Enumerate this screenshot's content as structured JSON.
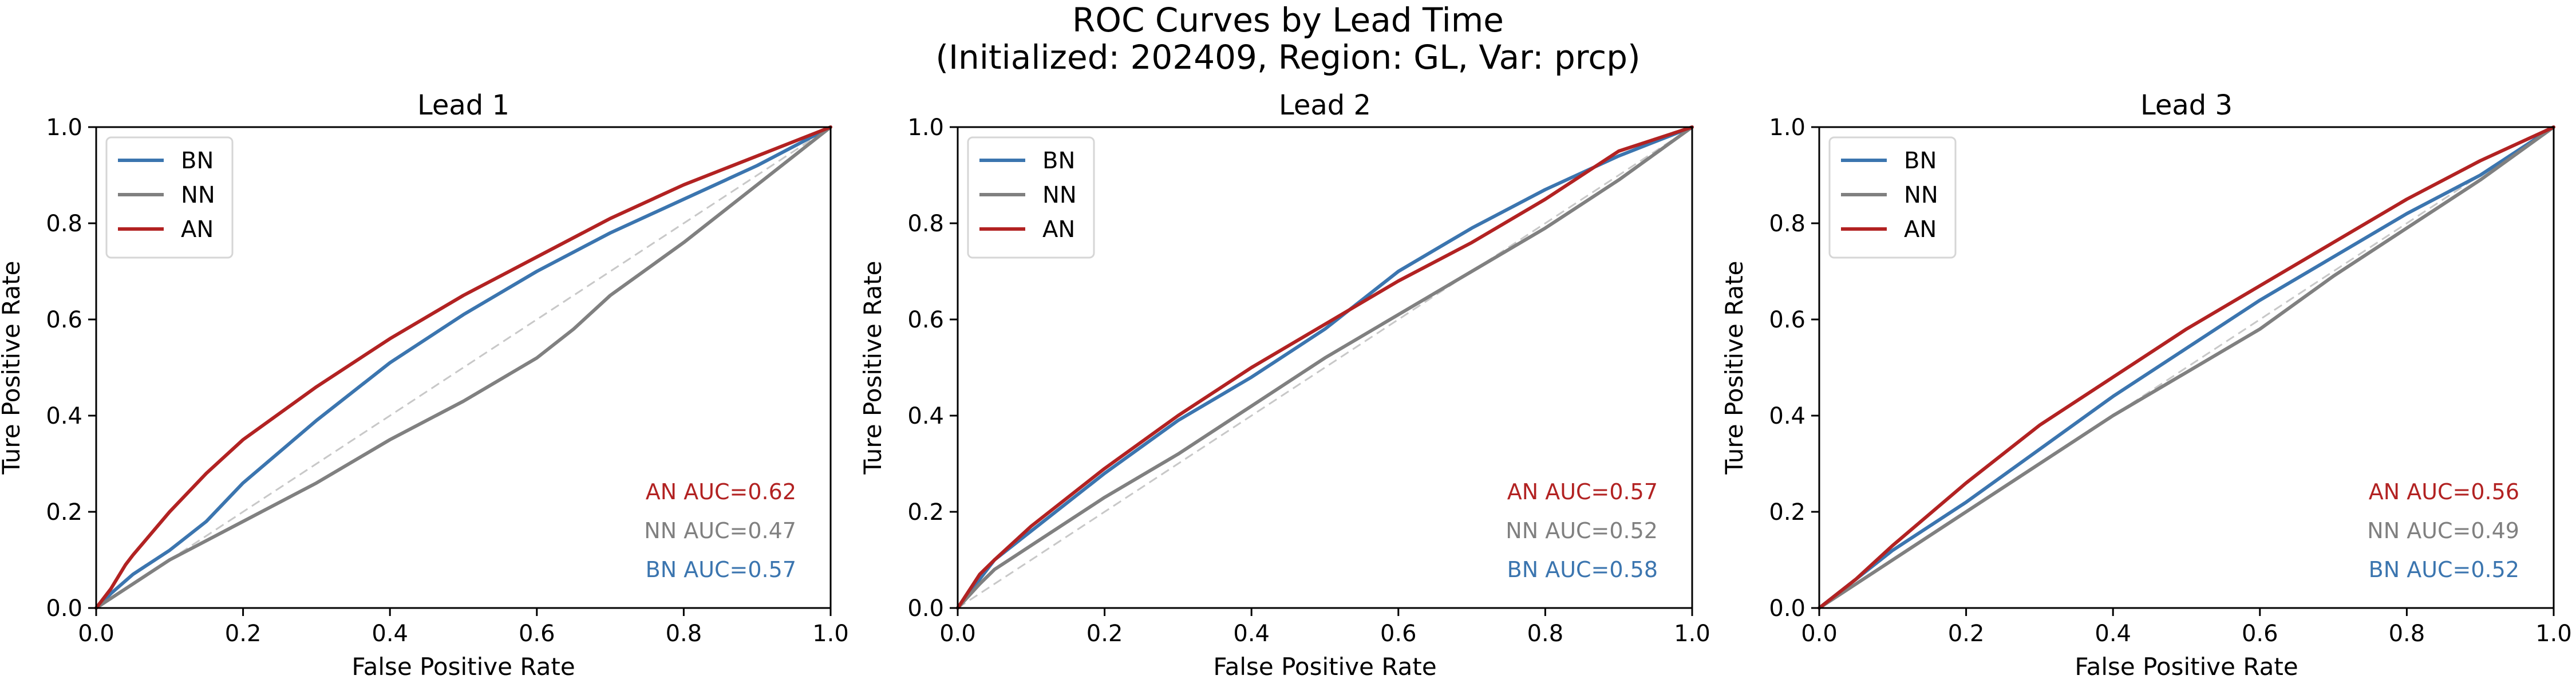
{
  "figure": {
    "title_line1": "ROC Curves by Lead Time",
    "title_line2": "(Initialized: 202409, Region: GL, Var: prcp)"
  },
  "colors": {
    "BN": "#3b75af",
    "NN": "#808080",
    "AN": "#b22222",
    "diagonal": "#c8c8c8"
  },
  "chart_data": [
    {
      "type": "line",
      "title": "Lead 1",
      "xlabel": "False Positive Rate",
      "ylabel": "Ture Positive Rate",
      "xlim": [
        0,
        1
      ],
      "ylim": [
        0,
        1
      ],
      "xticks": [
        "0.0",
        "0.2",
        "0.4",
        "0.6",
        "0.8",
        "1.0"
      ],
      "yticks": [
        "0.0",
        "0.2",
        "0.4",
        "0.6",
        "0.8",
        "1.0"
      ],
      "legend_position": "top-left",
      "series": [
        {
          "name": "BN",
          "x": [
            0,
            0.02,
            0.05,
            0.1,
            0.15,
            0.2,
            0.3,
            0.4,
            0.5,
            0.6,
            0.7,
            0.8,
            0.9,
            1.0
          ],
          "y": [
            0,
            0.03,
            0.07,
            0.12,
            0.18,
            0.26,
            0.39,
            0.51,
            0.61,
            0.7,
            0.78,
            0.85,
            0.92,
            1.0
          ]
        },
        {
          "name": "NN",
          "x": [
            0,
            0.05,
            0.1,
            0.2,
            0.3,
            0.4,
            0.5,
            0.6,
            0.65,
            0.7,
            0.8,
            0.9,
            1.0
          ],
          "y": [
            0,
            0.05,
            0.1,
            0.18,
            0.26,
            0.35,
            0.43,
            0.52,
            0.58,
            0.65,
            0.76,
            0.88,
            1.0
          ]
        },
        {
          "name": "AN",
          "x": [
            0,
            0.02,
            0.04,
            0.05,
            0.1,
            0.15,
            0.2,
            0.3,
            0.4,
            0.5,
            0.6,
            0.7,
            0.8,
            0.9,
            1.0
          ],
          "y": [
            0,
            0.04,
            0.09,
            0.11,
            0.2,
            0.28,
            0.35,
            0.46,
            0.56,
            0.65,
            0.73,
            0.81,
            0.88,
            0.94,
            1.0
          ]
        }
      ],
      "annotations": [
        "AN AUC=0.62",
        "NN AUC=0.47",
        "BN AUC=0.57"
      ]
    },
    {
      "type": "line",
      "title": "Lead 2",
      "xlabel": "False Positive Rate",
      "ylabel": "Ture Positive Rate",
      "xlim": [
        0,
        1
      ],
      "ylim": [
        0,
        1
      ],
      "xticks": [
        "0.0",
        "0.2",
        "0.4",
        "0.6",
        "0.8",
        "1.0"
      ],
      "yticks": [
        "0.0",
        "0.2",
        "0.4",
        "0.6",
        "0.8",
        "1.0"
      ],
      "legend_position": "top-left",
      "series": [
        {
          "name": "BN",
          "x": [
            0,
            0.03,
            0.05,
            0.1,
            0.2,
            0.3,
            0.4,
            0.5,
            0.6,
            0.7,
            0.8,
            0.9,
            1.0
          ],
          "y": [
            0,
            0.06,
            0.1,
            0.16,
            0.28,
            0.39,
            0.48,
            0.58,
            0.7,
            0.79,
            0.87,
            0.94,
            1.0
          ]
        },
        {
          "name": "NN",
          "x": [
            0,
            0.03,
            0.05,
            0.1,
            0.2,
            0.3,
            0.4,
            0.5,
            0.6,
            0.7,
            0.8,
            0.9,
            1.0
          ],
          "y": [
            0,
            0.05,
            0.08,
            0.13,
            0.23,
            0.32,
            0.42,
            0.52,
            0.61,
            0.7,
            0.79,
            0.89,
            1.0
          ]
        },
        {
          "name": "AN",
          "x": [
            0,
            0.03,
            0.05,
            0.1,
            0.2,
            0.3,
            0.4,
            0.5,
            0.6,
            0.7,
            0.8,
            0.9,
            1.0
          ],
          "y": [
            0,
            0.07,
            0.1,
            0.17,
            0.29,
            0.4,
            0.5,
            0.59,
            0.68,
            0.76,
            0.85,
            0.95,
            1.0
          ]
        }
      ],
      "annotations": [
        "AN AUC=0.57",
        "NN AUC=0.52",
        "BN AUC=0.58"
      ]
    },
    {
      "type": "line",
      "title": "Lead 3",
      "xlabel": "False Positive Rate",
      "ylabel": "Ture Positive Rate",
      "xlim": [
        0,
        1
      ],
      "ylim": [
        0,
        1
      ],
      "xticks": [
        "0.0",
        "0.2",
        "0.4",
        "0.6",
        "0.8",
        "1.0"
      ],
      "yticks": [
        "0.0",
        "0.2",
        "0.4",
        "0.6",
        "0.8",
        "1.0"
      ],
      "legend_position": "top-left",
      "series": [
        {
          "name": "BN",
          "x": [
            0,
            0.05,
            0.1,
            0.2,
            0.3,
            0.4,
            0.5,
            0.6,
            0.7,
            0.8,
            0.9,
            1.0
          ],
          "y": [
            0,
            0.06,
            0.12,
            0.22,
            0.33,
            0.44,
            0.54,
            0.64,
            0.73,
            0.82,
            0.9,
            1.0
          ]
        },
        {
          "name": "NN",
          "x": [
            0,
            0.05,
            0.1,
            0.2,
            0.3,
            0.4,
            0.5,
            0.6,
            0.7,
            0.8,
            0.9,
            1.0
          ],
          "y": [
            0,
            0.05,
            0.1,
            0.2,
            0.3,
            0.4,
            0.49,
            0.58,
            0.69,
            0.79,
            0.89,
            1.0
          ]
        },
        {
          "name": "AN",
          "x": [
            0,
            0.05,
            0.1,
            0.2,
            0.3,
            0.4,
            0.5,
            0.6,
            0.7,
            0.8,
            0.9,
            1.0
          ],
          "y": [
            0,
            0.06,
            0.13,
            0.26,
            0.38,
            0.48,
            0.58,
            0.67,
            0.76,
            0.85,
            0.93,
            1.0
          ]
        }
      ],
      "annotations": [
        "AN AUC=0.56",
        "NN AUC=0.49",
        "BN AUC=0.52"
      ]
    }
  ]
}
